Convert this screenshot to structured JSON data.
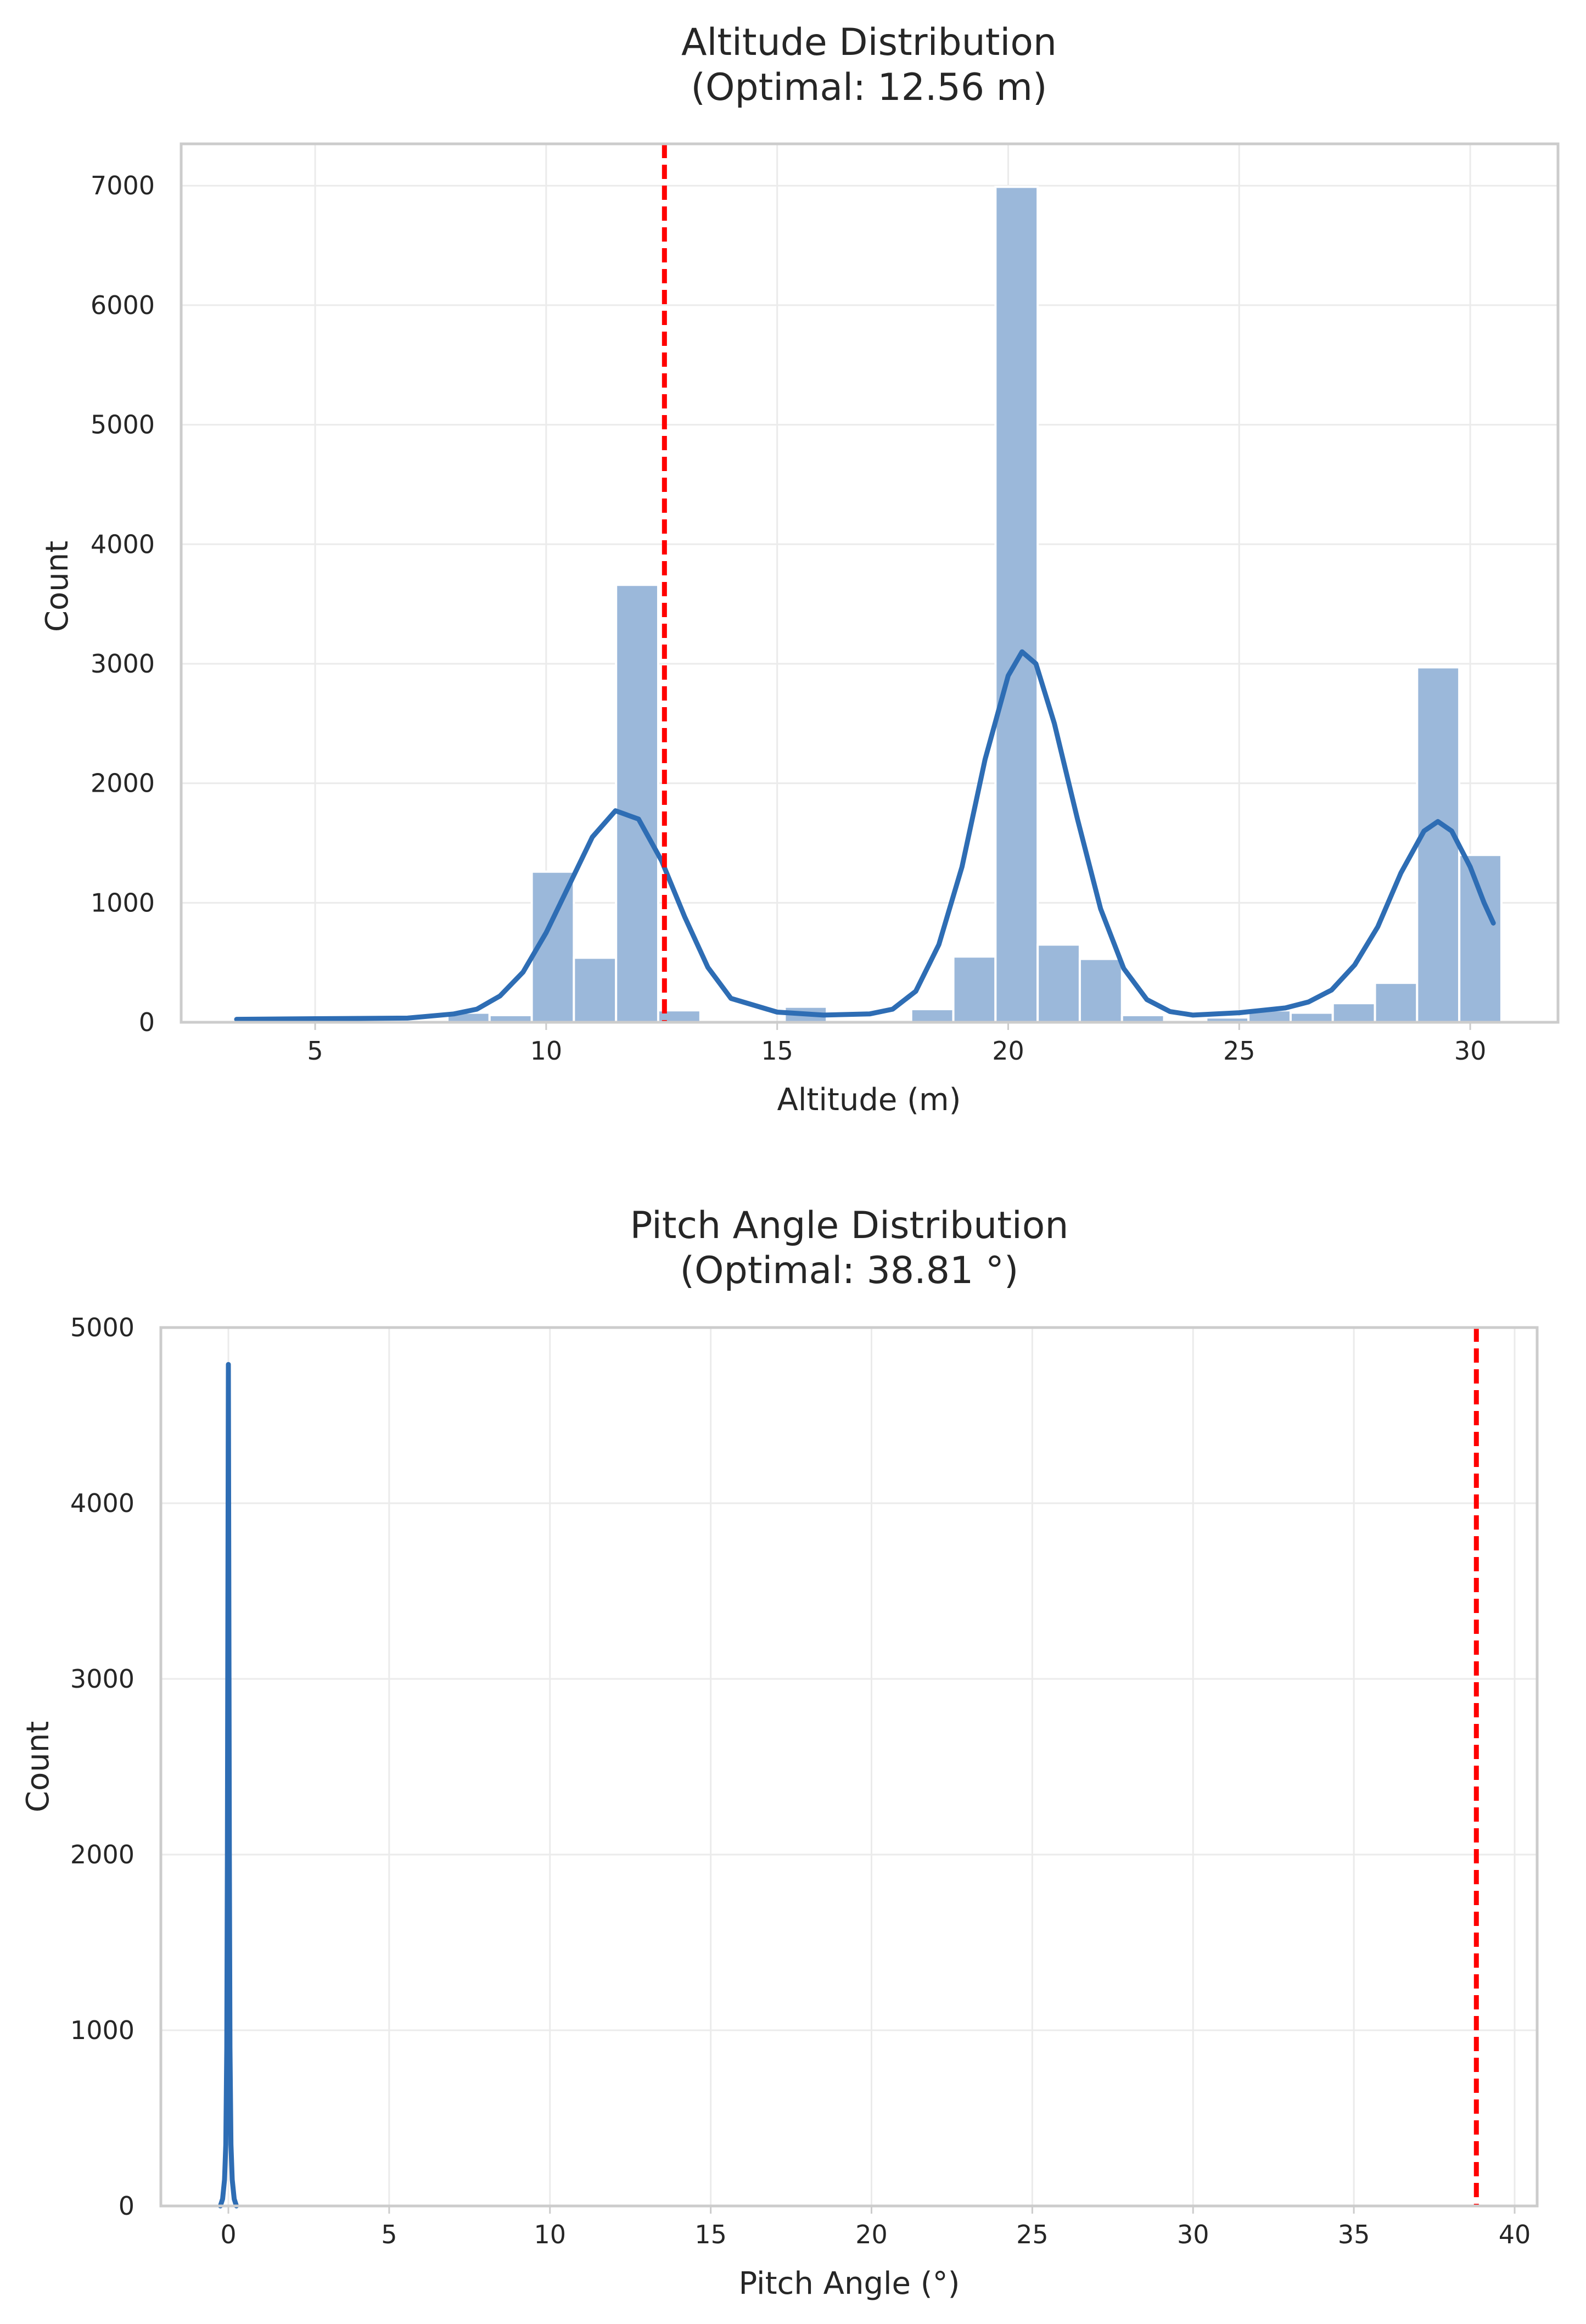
{
  "chart_data": [
    {
      "type": "bar",
      "title": "Altitude Distribution\n(Optimal: 12.56 m)",
      "title_lines": [
        "Altitude Distribution",
        "(Optimal: 12.56 m)"
      ],
      "xlabel": "Altitude (m)",
      "ylabel": "Count",
      "xlim": [
        2.1,
        31.9
      ],
      "ylim": [
        0,
        7350
      ],
      "xticks": [
        5,
        10,
        15,
        20,
        25,
        30
      ],
      "yticks": [
        0,
        1000,
        2000,
        3000,
        4000,
        5000,
        6000,
        7000
      ],
      "grid": true,
      "optimal_line": 12.56,
      "histogram": {
        "bin_edges": [
          3.3,
          4.213,
          5.125,
          6.038,
          6.95,
          7.863,
          8.775,
          9.688,
          10.6,
          11.513,
          12.425,
          13.338,
          14.25,
          15.163,
          16.075,
          16.988,
          17.9,
          18.813,
          19.725,
          20.638,
          21.55,
          22.463,
          23.375,
          24.288,
          25.2,
          26.113,
          27.025,
          27.938,
          28.85,
          29.763,
          30.675
        ],
        "counts": [
          0,
          0,
          0,
          0,
          0,
          80,
          60,
          1260,
          540,
          3660,
          100,
          0,
          0,
          130,
          0,
          0,
          110,
          550,
          6990,
          650,
          530,
          60,
          20,
          40,
          100,
          80,
          160,
          330,
          2970,
          1400
        ]
      },
      "kde": {
        "x": [
          3.3,
          5,
          7,
          8,
          8.5,
          9,
          9.5,
          10,
          10.5,
          11,
          11.5,
          12,
          12.5,
          13,
          13.5,
          14,
          15,
          16,
          17,
          17.5,
          18,
          18.5,
          19,
          19.5,
          20,
          20.3,
          20.6,
          21,
          21.5,
          22,
          22.5,
          23,
          23.5,
          24,
          25,
          26,
          26.5,
          27,
          27.5,
          28,
          28.5,
          29,
          29.3,
          29.6,
          30,
          30.3,
          30.5
        ],
        "y": [
          25,
          30,
          35,
          70,
          110,
          220,
          420,
          750,
          1150,
          1550,
          1770,
          1700,
          1350,
          880,
          460,
          200,
          85,
          60,
          70,
          110,
          260,
          650,
          1300,
          2200,
          2900,
          3100,
          3000,
          2500,
          1700,
          950,
          450,
          190,
          90,
          60,
          80,
          120,
          170,
          270,
          480,
          800,
          1250,
          1600,
          1680,
          1600,
          1300,
          1000,
          830
        ]
      },
      "colors": {
        "bars": "#9bb8da",
        "kde": "#2e6db4",
        "optimal": "#ff0000"
      }
    },
    {
      "type": "bar",
      "title": "Pitch Angle Distribution\n(Optimal: 38.81 °)",
      "title_lines": [
        "Pitch Angle Distribution",
        "(Optimal: 38.81 °)"
      ],
      "xlabel": "Pitch Angle (°)",
      "ylabel": "Count",
      "xlim": [
        -2.1,
        40.7
      ],
      "ylim": [
        0,
        5000
      ],
      "xticks": [
        0,
        5,
        10,
        15,
        20,
        25,
        30,
        35,
        40
      ],
      "yticks": [
        0,
        1000,
        2000,
        3000,
        4000,
        5000
      ],
      "grid": true,
      "optimal_line": 38.81,
      "kde": {
        "x": [
          -0.25,
          -0.18,
          -0.12,
          -0.08,
          -0.05,
          -0.03,
          0,
          0.03,
          0.05,
          0.08,
          0.12,
          0.18,
          0.25
        ],
        "y": [
          0,
          40,
          150,
          350,
          900,
          2000,
          4790,
          2000,
          900,
          350,
          150,
          40,
          0
        ]
      },
      "colors": {
        "kde": "#2e6db4",
        "optimal": "#ff0000"
      }
    }
  ]
}
